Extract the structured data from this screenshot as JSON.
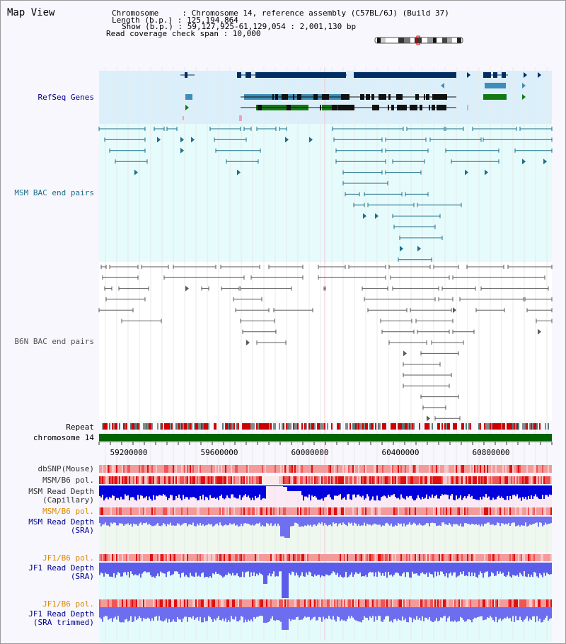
{
  "header": {
    "title": "Map View",
    "info_lines": [
      "Chromosome     : Chromosome 14, reference assembly (C57BL/6J) (Build 37)",
      "Length (b.p.) : 125,194,864",
      "Show (b.p.) : 59,127,925-61,129,054 : 2,001,130 bp",
      "Read coverage check span : 10,000"
    ]
  },
  "tracks": {
    "refseq": {
      "label": "RefSeq Genes",
      "color": "#00008b"
    },
    "msm_bac": {
      "label": "MSM BAC end pairs",
      "color": "#1d6f8a"
    },
    "b6n_bac": {
      "label": "B6N BAC end pairs",
      "color": "#555555"
    },
    "repeat": {
      "label": "Repeat"
    },
    "chromosome": {
      "label": "chromosome 14"
    },
    "dbsnp": {
      "label": "dbSNP(Mouse)"
    },
    "msm_b6_pol1": {
      "label": "MSM/B6 pol."
    },
    "msm_read_capillary": {
      "label": "MSM Read Depth\n(Capillary)",
      "color": "#000000"
    },
    "msm_b6_pol2": {
      "label": "MSM/B6 pol.",
      "color": "#e08a00"
    },
    "msm_read_sra": {
      "label": "MSM Read Depth\n(SRA)",
      "color": "#00008b"
    },
    "jf1_b6_pol1": {
      "label": "JF1/B6 pol.",
      "color": "#e08a00"
    },
    "jf1_read_sra": {
      "label": "JF1 Read Depth\n(SRA)",
      "color": "#00008b"
    },
    "jf1_b6_pol2": {
      "label": "JF1/B6 pol.",
      "color": "#e08a00"
    },
    "jf1_read_trimmed": {
      "label": "JF1 Read Depth\n(SRA trimmed)",
      "color": "#00008b"
    }
  },
  "axis": {
    "ticks": [
      "59200000",
      "59600000",
      "60000000",
      "60400000",
      "60800000"
    ]
  },
  "colors": {
    "refseq_bg": "#dbeffb",
    "msm_bg": "#e6fbfb",
    "b6n_bg": "#ffffff",
    "capillary_bg": "#fbeaf6",
    "sra_bg": "#eef8ee",
    "jf1_bg": "#e4fbfb",
    "chromosome_bar": "#006400",
    "refseq_dark": "#002d62",
    "refseq_mid": "#3d8db8",
    "refseq_green": "#137a13",
    "depth_dark": "#0000dd",
    "depth_light": "#6666ee"
  }
}
